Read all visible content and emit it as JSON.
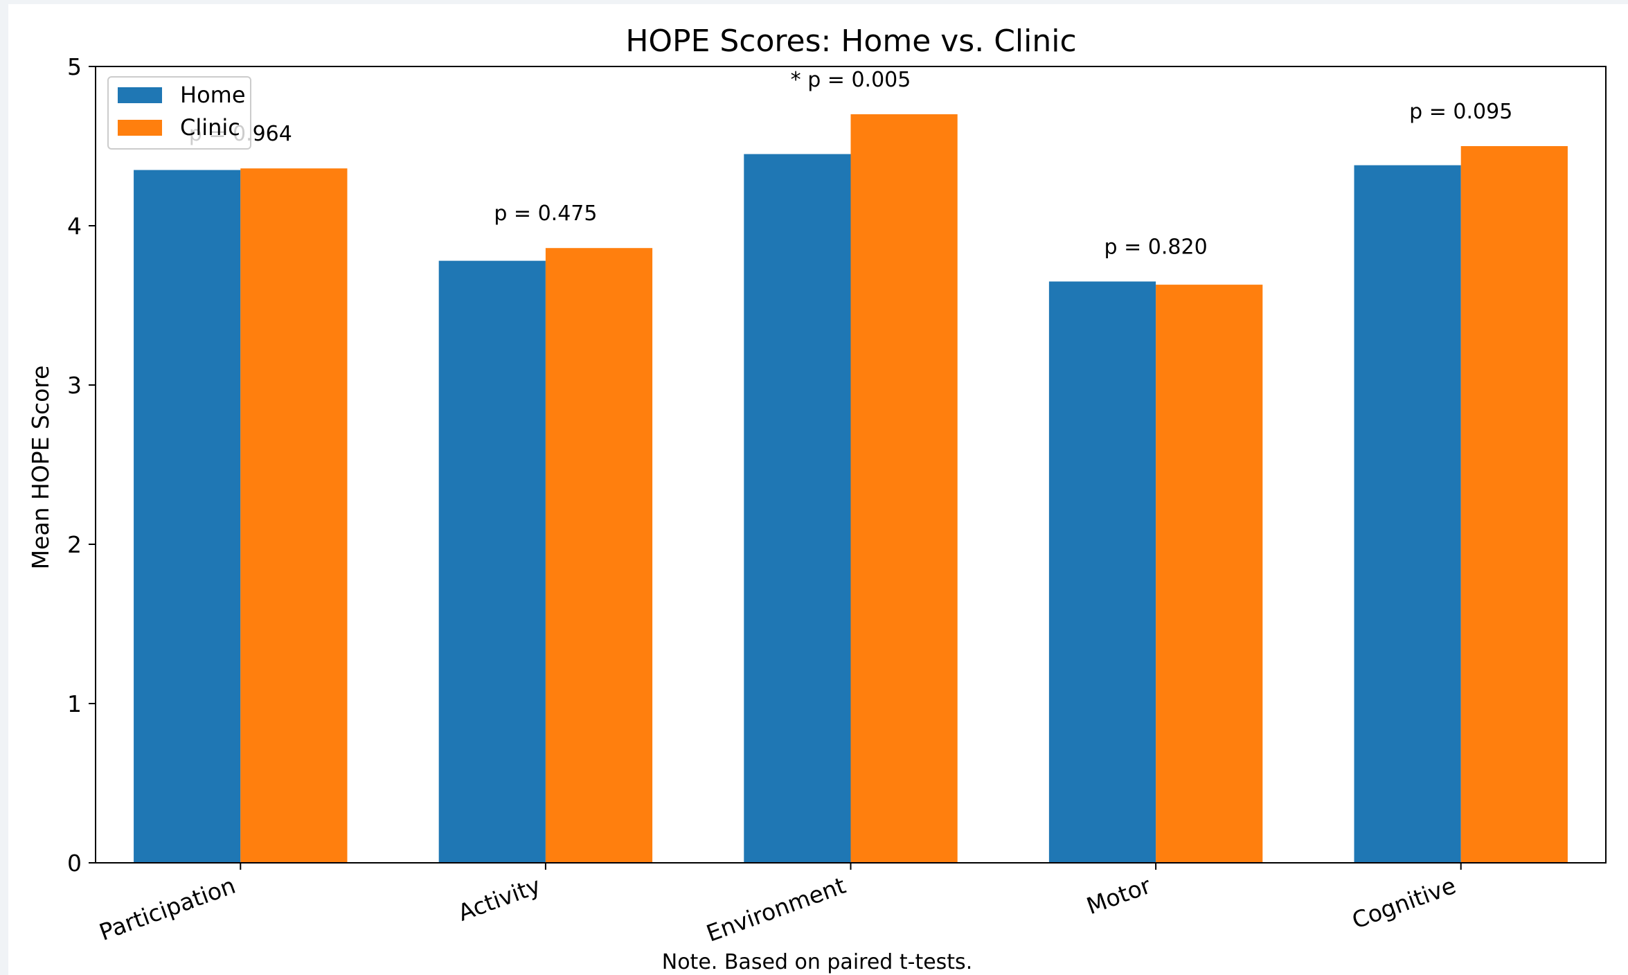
{
  "chart_data": {
    "type": "bar",
    "title": "HOPE Scores: Home vs. Clinic",
    "xlabel": "",
    "ylabel": "Mean HOPE Score",
    "ylim": [
      0,
      5
    ],
    "yticks": [
      "0",
      "1",
      "2",
      "3",
      "4",
      "5"
    ],
    "categories": [
      "Participation",
      "Activity",
      "Environment",
      "Motor",
      "Cognitive"
    ],
    "series": [
      {
        "name": "Home",
        "color": "#1f77b4",
        "values": [
          4.35,
          3.78,
          4.45,
          3.65,
          4.38
        ]
      },
      {
        "name": "Clinic",
        "color": "#ff7f0e",
        "values": [
          4.36,
          3.86,
          4.7,
          3.63,
          4.5
        ]
      }
    ],
    "annotations": [
      "p = 0.964",
      "p = 0.475",
      "* p = 0.005",
      "p = 0.820",
      "p = 0.095"
    ],
    "legend": {
      "placement": "upper-left",
      "entries": [
        "Home",
        "Clinic"
      ]
    },
    "grid": false,
    "note": "Note. Based on paired t-tests."
  }
}
